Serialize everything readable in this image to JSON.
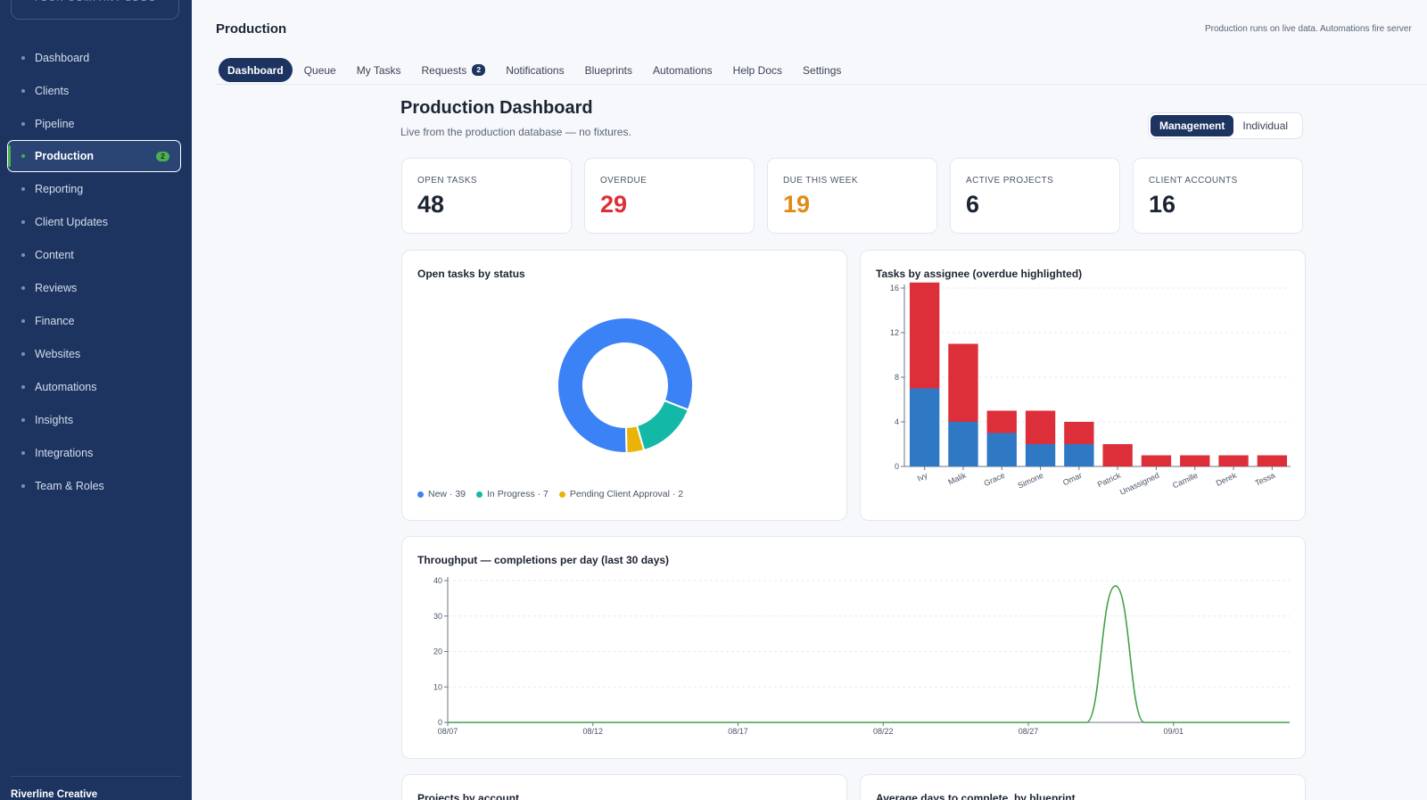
{
  "sidebar": {
    "company_box": "YOUR COMPANY LOGO",
    "items": [
      {
        "label": "Dashboard"
      },
      {
        "label": "Clients"
      },
      {
        "label": "Pipeline"
      },
      {
        "label": "Production",
        "badge": "2"
      },
      {
        "label": "Reporting"
      },
      {
        "label": "Client Updates"
      },
      {
        "label": "Content"
      },
      {
        "label": "Reviews"
      },
      {
        "label": "Finance"
      },
      {
        "label": "Websites"
      },
      {
        "label": "Automations"
      },
      {
        "label": "Insights"
      },
      {
        "label": "Integrations"
      },
      {
        "label": "Team & Roles"
      }
    ],
    "org_name": "Riverline Creative"
  },
  "header": {
    "title": "Production",
    "note": "Production runs on live data. Automations fire server"
  },
  "tabs": [
    {
      "label": "Dashboard"
    },
    {
      "label": "Queue"
    },
    {
      "label": "My Tasks"
    },
    {
      "label": "Requests",
      "badge": "2"
    },
    {
      "label": "Notifications"
    },
    {
      "label": "Blueprints"
    },
    {
      "label": "Automations"
    },
    {
      "label": "Help Docs"
    },
    {
      "label": "Settings"
    }
  ],
  "dashboard": {
    "title": "Production Dashboard",
    "subtitle": "Live from the production database — no fixtures.",
    "view_toggle": {
      "management": "Management",
      "individual": "Individual",
      "selected": "Management"
    }
  },
  "kpis": [
    {
      "label": "OPEN TASKS",
      "value": "48",
      "color": "#1c2433"
    },
    {
      "label": "OVERDUE",
      "value": "29",
      "color": "#dc2f3a"
    },
    {
      "label": "DUE THIS WEEK",
      "value": "19",
      "color": "#e08a14"
    },
    {
      "label": "ACTIVE PROJECTS",
      "value": "6",
      "color": "#1c2433"
    },
    {
      "label": "CLIENT ACCOUNTS",
      "value": "16",
      "color": "#1c2433"
    }
  ],
  "cards": {
    "status_title": "Open tasks by status",
    "assignee_title": "Tasks by assignee (overdue highlighted)",
    "throughput_title": "Throughput — completions per day (last 30 days)",
    "projects_title": "Projects by account",
    "avg_days_title": "Average days to complete, by blueprint"
  },
  "chart_data": [
    {
      "type": "pie",
      "labels": [
        "New",
        "In Progress",
        "Pending Client Approval"
      ],
      "values": [
        39,
        7,
        2
      ],
      "legend": [
        "New · 39",
        "In Progress · 7",
        "Pending Client Approval · 2"
      ],
      "colors": [
        "#3b82f6",
        "#14b8a6",
        "#eab308"
      ]
    },
    {
      "type": "bar",
      "stacked": true,
      "categories": [
        "Ivy",
        "Malik",
        "Grace",
        "Simone",
        "Omar",
        "Patrick",
        "Unassigned",
        "Camille",
        "Derek",
        "Tessa"
      ],
      "series": [
        {
          "values": [
            7,
            4,
            3,
            2,
            2,
            0,
            0,
            0,
            0,
            0
          ],
          "color": "#2f78c4"
        },
        {
          "values": [
            9.5,
            7,
            2,
            3,
            2,
            2,
            1,
            1,
            1,
            1
          ],
          "color": "#dc2f3a"
        }
      ],
      "ylim": [
        0,
        16
      ],
      "yticks": [
        0,
        4,
        8,
        12,
        16
      ]
    },
    {
      "type": "line",
      "x": [
        "08/07",
        "08/08",
        "08/09",
        "08/10",
        "08/11",
        "08/12",
        "08/13",
        "08/14",
        "08/15",
        "08/16",
        "08/17",
        "08/18",
        "08/19",
        "08/20",
        "08/21",
        "08/22",
        "08/23",
        "08/24",
        "08/25",
        "08/26",
        "08/27",
        "08/28",
        "08/29",
        "08/30",
        "08/31",
        "09/01",
        "09/02",
        "09/03",
        "09/04",
        "09/05"
      ],
      "y": [
        0,
        0,
        0,
        0,
        0,
        0,
        0,
        0,
        0,
        0,
        0,
        0,
        0,
        0,
        0,
        0,
        0,
        0,
        0,
        0,
        0,
        0,
        0,
        38.5,
        0,
        0,
        0,
        0,
        0,
        0
      ],
      "xticks": [
        "08/07",
        "08/12",
        "08/17",
        "08/22",
        "08/27",
        "09/01"
      ],
      "ylim": [
        0,
        40
      ],
      "yticks": [
        0,
        10,
        20,
        30,
        40
      ],
      "color": "#43a047",
      "grid": true
    }
  ]
}
